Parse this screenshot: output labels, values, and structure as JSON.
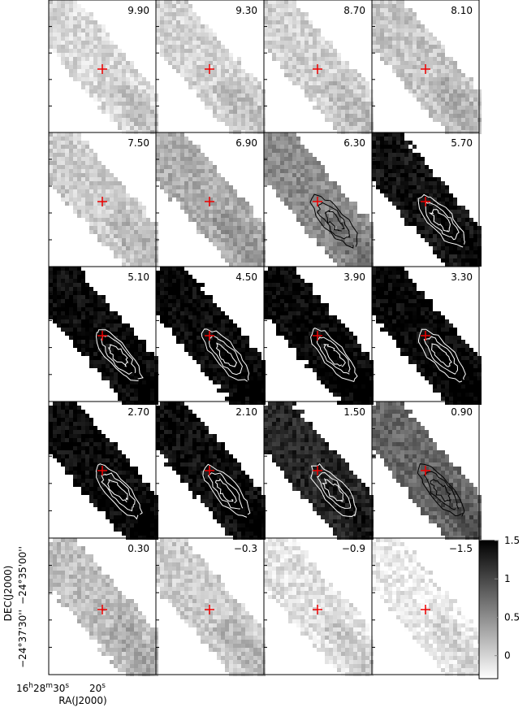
{
  "panels": [
    {
      "label": "9.90"
    },
    {
      "label": "9.30"
    },
    {
      "label": "8.70"
    },
    {
      "label": "8.10"
    },
    {
      "label": "7.50"
    },
    {
      "label": "6.90"
    },
    {
      "label": "6.30"
    },
    {
      "label": "5.70"
    },
    {
      "label": "5.10"
    },
    {
      "label": "4.50"
    },
    {
      "label": "3.90"
    },
    {
      "label": "3.30"
    },
    {
      "label": "2.70"
    },
    {
      "label": "2.10"
    },
    {
      "label": "1.50"
    },
    {
      "label": "0.90"
    },
    {
      "label": "0.30"
    },
    {
      "label": "−0.3"
    },
    {
      "label": "−0.9"
    },
    {
      "label": "−1.5"
    }
  ],
  "colorbar": {
    "lim": [
      -0.3,
      1.5
    ],
    "ticks": [
      1.5,
      1,
      0.5,
      0
    ]
  },
  "y_axis": {
    "title": "DEC(J2000)",
    "tick_labels": [
      "−24°37'30''",
      "−24°35'00''"
    ]
  },
  "x_axis": {
    "title": "RA(J2000)",
    "tick_labels": [
      [
        "16",
        "h",
        "28",
        "m",
        "30",
        "s"
      ],
      [
        "20",
        "s"
      ]
    ]
  }
}
